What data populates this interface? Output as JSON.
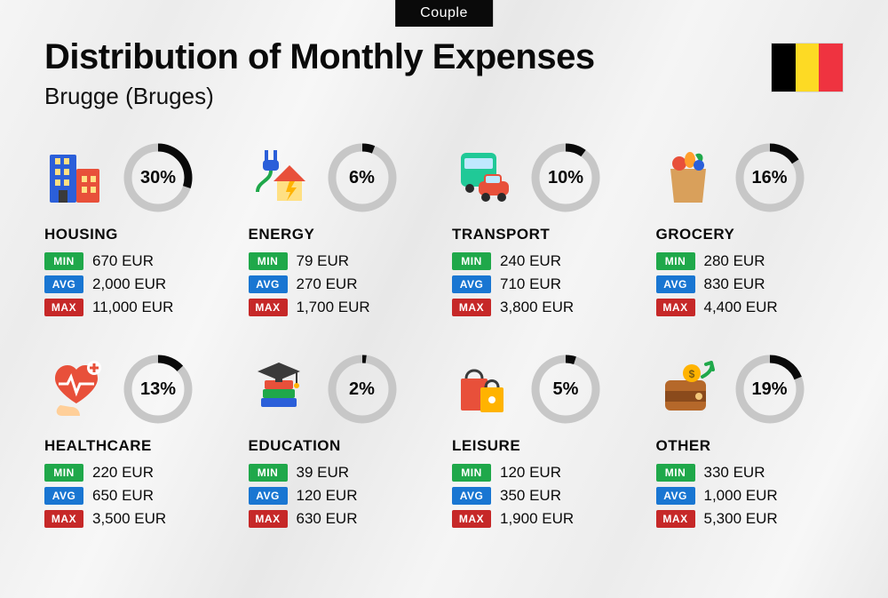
{
  "badge": "Couple",
  "title": "Distribution of Monthly Expenses",
  "subtitle": "Brugge (Bruges)",
  "flag_colors": [
    "#000000",
    "#fdda24",
    "#ef3340"
  ],
  "currency": "EUR",
  "donut": {
    "radius": 34,
    "stroke_width": 9,
    "track_color": "#c7c7c7",
    "progress_color": "#0a0a0a"
  },
  "tags": {
    "min": {
      "label": "MIN",
      "bg": "#1fa84a"
    },
    "avg": {
      "label": "AVG",
      "bg": "#1976d2"
    },
    "max": {
      "label": "MAX",
      "bg": "#c62828"
    }
  },
  "categories": [
    {
      "key": "housing",
      "name": "HOUSING",
      "percent": 30,
      "min": "670 EUR",
      "avg": "2,000 EUR",
      "max": "11,000 EUR",
      "icon": "buildings"
    },
    {
      "key": "energy",
      "name": "ENERGY",
      "percent": 6,
      "min": "79 EUR",
      "avg": "270 EUR",
      "max": "1,700 EUR",
      "icon": "energy"
    },
    {
      "key": "transport",
      "name": "TRANSPORT",
      "percent": 10,
      "min": "240 EUR",
      "avg": "710 EUR",
      "max": "3,800 EUR",
      "icon": "transport"
    },
    {
      "key": "grocery",
      "name": "GROCERY",
      "percent": 16,
      "min": "280 EUR",
      "avg": "830 EUR",
      "max": "4,400 EUR",
      "icon": "grocery"
    },
    {
      "key": "healthcare",
      "name": "HEALTHCARE",
      "percent": 13,
      "min": "220 EUR",
      "avg": "650 EUR",
      "max": "3,500 EUR",
      "icon": "health"
    },
    {
      "key": "education",
      "name": "EDUCATION",
      "percent": 2,
      "min": "39 EUR",
      "avg": "120 EUR",
      "max": "630 EUR",
      "icon": "education"
    },
    {
      "key": "leisure",
      "name": "LEISURE",
      "percent": 5,
      "min": "120 EUR",
      "avg": "350 EUR",
      "max": "1,900 EUR",
      "icon": "leisure"
    },
    {
      "key": "other",
      "name": "OTHER",
      "percent": 19,
      "min": "330 EUR",
      "avg": "1,000 EUR",
      "max": "5,300 EUR",
      "icon": "wallet"
    }
  ],
  "icons": {
    "buildings": {
      "colors": {
        "b1": "#2b5fd9",
        "b2": "#e8503a",
        "win": "#ffe083",
        "door": "#3a3a3a"
      }
    },
    "energy": {
      "colors": {
        "house": "#ffe083",
        "roof": "#e8503a",
        "plug": "#2b5fd9",
        "bolt": "#ffb300",
        "cord": "#1fa84a"
      }
    },
    "transport": {
      "colors": {
        "bus": "#20c997",
        "car": "#e8503a",
        "win": "#bfe8ff",
        "wheel": "#2a2a2a"
      }
    },
    "grocery": {
      "colors": {
        "bag": "#d9a05b",
        "veg1": "#e8503a",
        "veg2": "#1fa84a",
        "veg3": "#ff9e2c",
        "veg4": "#2b5fd9"
      }
    },
    "health": {
      "colors": {
        "heart": "#e8503a",
        "hand": "#ffcf99",
        "line": "#ffffff",
        "plus": "#e8503a"
      }
    },
    "education": {
      "colors": {
        "cap": "#3a3a3a",
        "book1": "#e8503a",
        "book2": "#1fa84a",
        "book3": "#2b5fd9",
        "tassel": "#ffb300"
      }
    },
    "leisure": {
      "colors": {
        "bag1": "#e8503a",
        "bag2": "#ffb300",
        "handle": "#3a3a3a"
      }
    },
    "wallet": {
      "colors": {
        "body": "#b5682a",
        "flap": "#8a4a1c",
        "coin": "#ffb300",
        "arrow": "#1fa84a"
      }
    }
  }
}
